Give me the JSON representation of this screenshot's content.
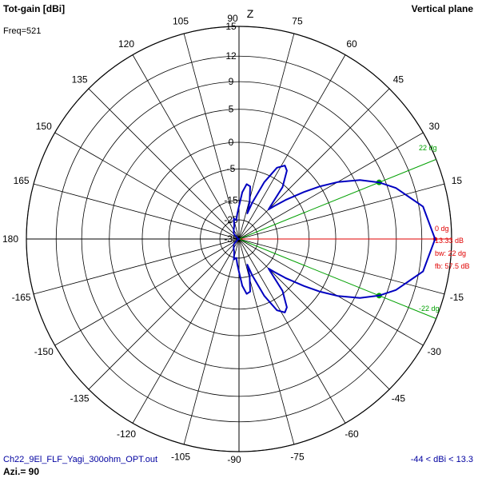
{
  "header": {
    "title_left": "Tot-gain [dBi]",
    "title_right": "Vertical plane",
    "freq": "Freq=521"
  },
  "footer": {
    "filename": "Ch22_9El_FLF_Yagi_300ohm_OPT.out",
    "azimuth": "Azi.= 90",
    "range": "-44 < dBi < 13.3"
  },
  "chart_data": {
    "type": "polar",
    "title": "Tot-gain [dBi]",
    "subtitle": "Vertical plane",
    "radial_ticks": [
      "15",
      "12",
      "9",
      "5",
      "0",
      "-5",
      "-15",
      "-25",
      "-35"
    ],
    "radial_values": [
      15,
      12,
      9,
      5,
      0,
      -5,
      -15,
      -25,
      -35
    ],
    "angle_ticks": [
      {
        "deg": 90,
        "label": "90"
      },
      {
        "deg": 75,
        "label": "75"
      },
      {
        "deg": 60,
        "label": "60"
      },
      {
        "deg": 45,
        "label": "45"
      },
      {
        "deg": 30,
        "label": "30"
      },
      {
        "deg": 15,
        "label": "15"
      },
      {
        "deg": -15,
        "label": "-15"
      },
      {
        "deg": -30,
        "label": "-30"
      },
      {
        "deg": -45,
        "label": "-45"
      },
      {
        "deg": -60,
        "label": "-60"
      },
      {
        "deg": -75,
        "label": "-75"
      },
      {
        "deg": -90,
        "label": "-90"
      },
      {
        "deg": -105,
        "label": "-105"
      },
      {
        "deg": -120,
        "label": "-120"
      },
      {
        "deg": -135,
        "label": "-135"
      },
      {
        "deg": -150,
        "label": "-150"
      },
      {
        "deg": -165,
        "label": "-165"
      },
      {
        "deg": 180,
        "label": "180"
      },
      {
        "deg": 165,
        "label": "165"
      },
      {
        "deg": 150,
        "label": "150"
      },
      {
        "deg": 135,
        "label": "135"
      },
      {
        "deg": 120,
        "label": "120"
      },
      {
        "deg": 105,
        "label": "105"
      }
    ],
    "z_label": "Z",
    "series": [
      {
        "name": "Tot-gain",
        "color": "#0000c0",
        "points": [
          [
            0,
            13.33
          ],
          [
            10,
            12.4
          ],
          [
            18,
            9.9
          ],
          [
            22,
            8.1
          ],
          [
            26,
            5.7
          ],
          [
            30,
            2.6
          ],
          [
            33,
            0
          ],
          [
            36,
            -3.2
          ],
          [
            40,
            -8
          ],
          [
            43,
            -12
          ],
          [
            45,
            -14
          ],
          [
            46,
            -13
          ],
          [
            50,
            -5.8
          ],
          [
            55,
            -2.5
          ],
          [
            58,
            -1.9
          ],
          [
            62,
            -3
          ],
          [
            66,
            -7.5
          ],
          [
            70,
            -15
          ],
          [
            72,
            -21
          ],
          [
            74,
            -15
          ],
          [
            78,
            -10.2
          ],
          [
            82,
            -9.7
          ],
          [
            86,
            -12.4
          ],
          [
            90,
            -18
          ],
          [
            94,
            -22
          ],
          [
            98,
            -25
          ],
          [
            104,
            -24
          ],
          [
            110,
            -28
          ],
          [
            120,
            -30
          ],
          [
            135,
            -32
          ],
          [
            150,
            -36
          ],
          [
            165,
            -40
          ],
          [
            180,
            -44
          ]
        ],
        "symmetric": true
      }
    ],
    "annotations": {
      "max_gain": {
        "angle": 0,
        "angle_label": "0 dg",
        "label": "13.33 dB",
        "color": "#e00000"
      },
      "beamwidth_lines": [
        {
          "angle": 22,
          "label": "22 dg",
          "color": "#00a000"
        },
        {
          "angle": -22,
          "label": "-22 dg",
          "color": "#00a000"
        }
      ],
      "beamwidth": "bw: 22 dg",
      "front_back": "fb: 57.5 dB"
    }
  }
}
